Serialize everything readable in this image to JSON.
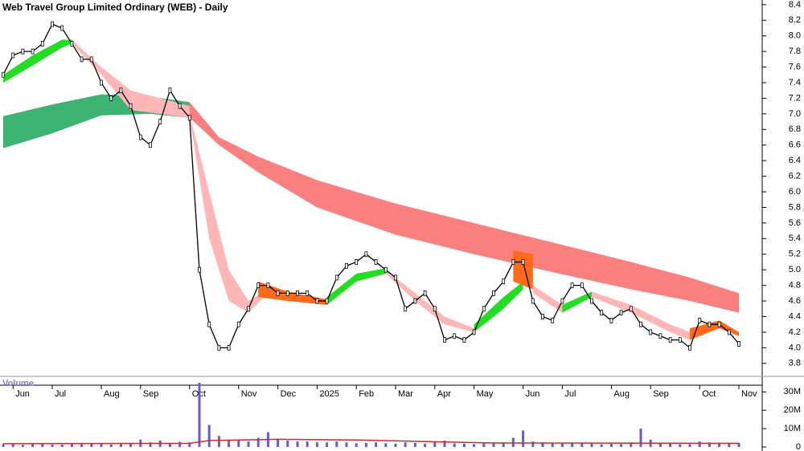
{
  "chart_data": [
    {
      "type": "line",
      "title": "Web Travel Group Limited Ordinary (WEB) - Daily",
      "color": "#000000",
      "categories": [
        null,
        "Jun",
        null,
        null,
        null,
        "Jul",
        null,
        null,
        null,
        null,
        "Aug",
        null,
        null,
        null,
        "Sep",
        null,
        null,
        null,
        null,
        "Oct",
        null,
        null,
        null,
        null,
        "Nov",
        null,
        null,
        null,
        "Dec",
        null,
        null,
        null,
        "2025",
        null,
        null,
        null,
        "Feb",
        null,
        null,
        null,
        "Mar",
        null,
        null,
        null,
        "Apr",
        null,
        null,
        null,
        "May",
        null,
        null,
        null,
        null,
        "Jun",
        null,
        null,
        null,
        "Jul",
        null,
        null,
        null,
        null,
        "Aug",
        null,
        null,
        null,
        "Sep",
        null,
        null,
        null,
        null,
        "Oct",
        null,
        null,
        null,
        "Nov"
      ],
      "values": [
        7.5,
        7.75,
        7.8,
        7.8,
        7.9,
        8.15,
        8.1,
        7.9,
        7.7,
        7.7,
        7.4,
        7.2,
        7.3,
        7.1,
        6.7,
        6.6,
        6.9,
        7.3,
        7.1,
        6.95,
        5.0,
        4.3,
        4.0,
        4.0,
        4.3,
        4.5,
        4.8,
        4.8,
        4.7,
        4.7,
        4.7,
        4.7,
        4.6,
        4.6,
        4.9,
        5.05,
        5.1,
        5.2,
        5.1,
        5.0,
        4.9,
        4.5,
        4.6,
        4.7,
        4.5,
        4.1,
        4.15,
        4.1,
        4.2,
        4.5,
        4.7,
        4.85,
        5.1,
        5.1,
        4.6,
        4.4,
        4.35,
        4.6,
        4.8,
        4.8,
        4.6,
        4.45,
        4.35,
        4.45,
        4.5,
        4.3,
        4.2,
        4.15,
        4.1,
        4.1,
        4.0,
        4.35,
        4.3,
        4.3,
        4.2,
        4.05
      ],
      "bands": [
        {
          "color": "#3cb371",
          "x": [
            0,
            5,
            10,
            15,
            19
          ],
          "upper": [
            6.97,
            7.12,
            7.25,
            7.22,
            7.15
          ],
          "lower": [
            6.56,
            6.75,
            6.98,
            7.0,
            6.95
          ]
        },
        {
          "color": "#fa8080",
          "x": [
            19,
            22,
            26,
            32,
            40,
            48,
            56,
            64,
            70,
            75
          ],
          "upper": [
            7.15,
            6.7,
            6.45,
            6.15,
            5.85,
            5.6,
            5.35,
            5.1,
            4.9,
            4.7
          ],
          "lower": [
            6.95,
            6.6,
            6.25,
            5.8,
            5.45,
            5.2,
            4.97,
            4.75,
            4.6,
            4.45
          ]
        },
        {
          "color": "#22dd22",
          "x": [
            0,
            3,
            6,
            7
          ],
          "upper": [
            7.5,
            7.75,
            7.95,
            7.95
          ],
          "lower": [
            7.4,
            7.62,
            7.85,
            7.9
          ]
        },
        {
          "color": "#ffb6b6",
          "x": [
            7,
            10,
            13,
            16,
            19
          ],
          "upper": [
            7.95,
            7.6,
            7.3,
            7.2,
            7.1
          ],
          "lower": [
            7.9,
            7.5,
            7.05,
            7.0,
            6.95
          ]
        },
        {
          "color": "#ffb6b6",
          "x": [
            19,
            21,
            23,
            25,
            27
          ],
          "upper": [
            7.0,
            6.0,
            5.0,
            4.6,
            4.75
          ],
          "lower": [
            6.95,
            5.4,
            4.6,
            4.45,
            4.7
          ]
        },
        {
          "color": "#ff6a1a",
          "x": [
            26,
            29,
            33
          ],
          "upper": [
            4.85,
            4.72,
            4.62
          ],
          "lower": [
            4.65,
            4.6,
            4.55
          ]
        },
        {
          "color": "#22dd22",
          "x": [
            33,
            36,
            39
          ],
          "upper": [
            4.65,
            4.95,
            5.02
          ],
          "lower": [
            4.55,
            4.85,
            4.95
          ]
        },
        {
          "color": "#ffb6b6",
          "x": [
            39,
            42,
            45,
            48
          ],
          "upper": [
            5.0,
            4.7,
            4.4,
            4.25
          ],
          "lower": [
            4.95,
            4.6,
            4.3,
            4.2
          ]
        },
        {
          "color": "#22dd22",
          "x": [
            48,
            51,
            53
          ],
          "upper": [
            4.3,
            4.65,
            4.85
          ],
          "lower": [
            4.2,
            4.5,
            4.75
          ]
        },
        {
          "color": "#ff6a1a",
          "x": [
            52,
            54
          ],
          "upper": [
            5.25,
            5.2
          ],
          "lower": [
            4.85,
            4.75
          ]
        },
        {
          "color": "#ffb6b6",
          "x": [
            54,
            57
          ],
          "upper": [
            4.8,
            4.55
          ],
          "lower": [
            4.7,
            4.45
          ]
        },
        {
          "color": "#22dd22",
          "x": [
            57,
            60
          ],
          "upper": [
            4.55,
            4.72
          ],
          "lower": [
            4.45,
            4.65
          ]
        },
        {
          "color": "#ffb6b6",
          "x": [
            60,
            64,
            68,
            70
          ],
          "upper": [
            4.72,
            4.55,
            4.3,
            4.2
          ],
          "lower": [
            4.65,
            4.45,
            4.2,
            4.1
          ]
        },
        {
          "color": "#ff6a1a",
          "x": [
            70,
            73,
            75
          ],
          "upper": [
            4.25,
            4.35,
            4.2
          ],
          "lower": [
            4.1,
            4.25,
            4.15
          ]
        }
      ],
      "ylim": [
        3.52,
        8.46
      ],
      "yticks": [
        3.8,
        {
          "value": 4,
          "label": "4.0"
        },
        4.2,
        4.4,
        4.6,
        4.8,
        {
          "value": 5,
          "label": "5.0"
        },
        5.2,
        5.4,
        5.6,
        5.8,
        {
          "value": 6,
          "label": "6.0"
        },
        6.2,
        6.4,
        6.6,
        6.8,
        {
          "value": 7,
          "label": "7.0"
        },
        7.2,
        7.4,
        7.6,
        7.8,
        {
          "value": 8,
          "label": "8.0"
        },
        8.2,
        8.4
      ]
    },
    {
      "type": "bar",
      "title": "Volume",
      "color": "#6a5acd",
      "values": [
        1500000,
        1800000,
        1200000,
        1600000,
        2000000,
        1400000,
        1300000,
        1700000,
        1500000,
        1900000,
        1600000,
        1400000,
        1800000,
        2200000,
        4000000,
        2500000,
        3500000,
        2000000,
        2800000,
        2500000,
        35000000,
        12000000,
        6000000,
        4000000,
        3500000,
        3000000,
        5000000,
        8000000,
        4000000,
        3500000,
        3000000,
        3000000,
        2500000,
        2500000,
        3000000,
        2500000,
        2000000,
        2200000,
        2500000,
        2000000,
        1800000,
        2500000,
        2200000,
        1800000,
        3000000,
        3500000,
        2000000,
        1800000,
        1600000,
        2000000,
        2200000,
        2500000,
        5000000,
        9000000,
        3000000,
        2500000,
        2000000,
        2200000,
        2500000,
        2000000,
        1800000,
        1500000,
        1800000,
        1600000,
        2500000,
        10000000,
        4000000,
        2000000,
        1800000,
        1500000,
        1600000,
        3000000,
        2500000,
        2000000,
        1800000,
        2200000
      ],
      "average": {
        "color": "#d62728",
        "x": [
          0,
          19,
          21,
          28,
          36,
          50,
          75
        ],
        "values": [
          1800000,
          2000000,
          3500000,
          4200000,
          3800000,
          2200000,
          2000000
        ]
      },
      "ylim": [
        0,
        38000000
      ],
      "yticks": [
        0,
        {
          "value": 10000000,
          "label": "10M"
        },
        {
          "value": 20000000,
          "label": "20M"
        },
        {
          "value": 30000000,
          "label": "30M"
        }
      ]
    }
  ]
}
